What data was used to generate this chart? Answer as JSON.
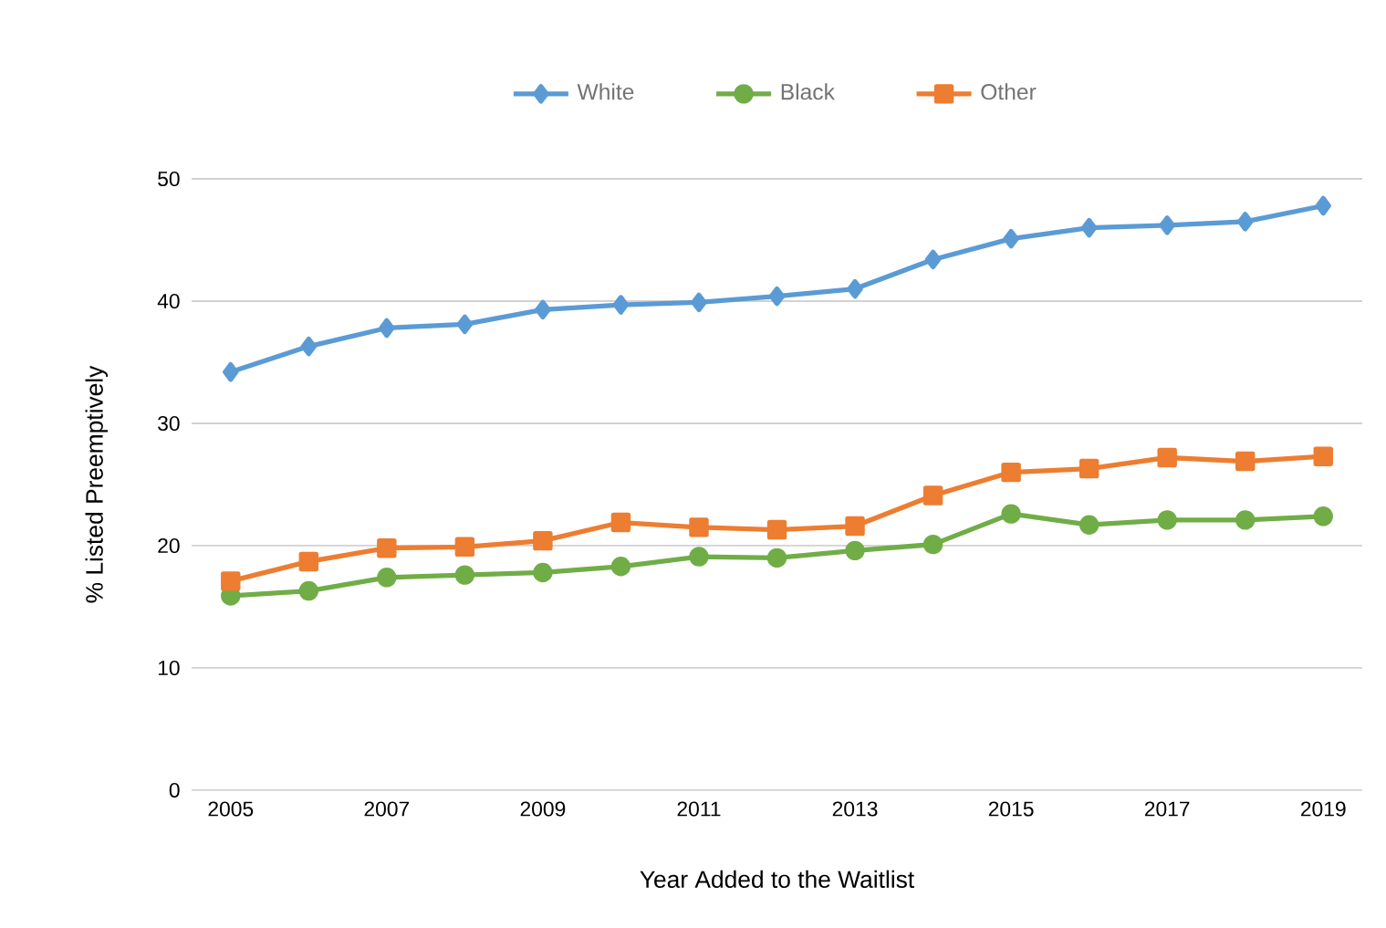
{
  "chart_data": {
    "type": "line",
    "xlabel": "Year Added to the Waitlist",
    "ylabel": "% Listed Preemptively",
    "x": [
      2005,
      2006,
      2007,
      2008,
      2009,
      2010,
      2011,
      2012,
      2013,
      2014,
      2015,
      2016,
      2017,
      2018,
      2019
    ],
    "series": [
      {
        "name": "White",
        "color": "#5b9bd5",
        "marker": "diamond",
        "values": [
          34.2,
          36.3,
          37.8,
          38.1,
          39.3,
          39.7,
          39.9,
          40.4,
          41.0,
          43.4,
          45.1,
          46.0,
          46.2,
          46.5,
          47.8
        ]
      },
      {
        "name": "Black",
        "color": "#70ad47",
        "marker": "circle",
        "values": [
          15.9,
          16.3,
          17.4,
          17.6,
          17.8,
          18.3,
          19.1,
          19.0,
          19.6,
          20.1,
          22.6,
          21.7,
          22.1,
          22.1,
          22.4
        ]
      },
      {
        "name": "Other",
        "color": "#ed7d31",
        "marker": "square",
        "values": [
          17.1,
          18.7,
          19.8,
          19.9,
          20.4,
          21.9,
          21.5,
          21.3,
          21.6,
          24.1,
          26.0,
          26.3,
          27.2,
          26.9,
          27.3
        ]
      }
    ],
    "xlim": [
      2004.5,
      2019.5
    ],
    "ylim": [
      0,
      50
    ],
    "xticks": [
      2005,
      2007,
      2009,
      2011,
      2013,
      2015,
      2017,
      2019
    ],
    "yticks": [
      0,
      10,
      20,
      30,
      40,
      50
    ],
    "grid": "y",
    "legend": "top",
    "line_style": "solid"
  }
}
